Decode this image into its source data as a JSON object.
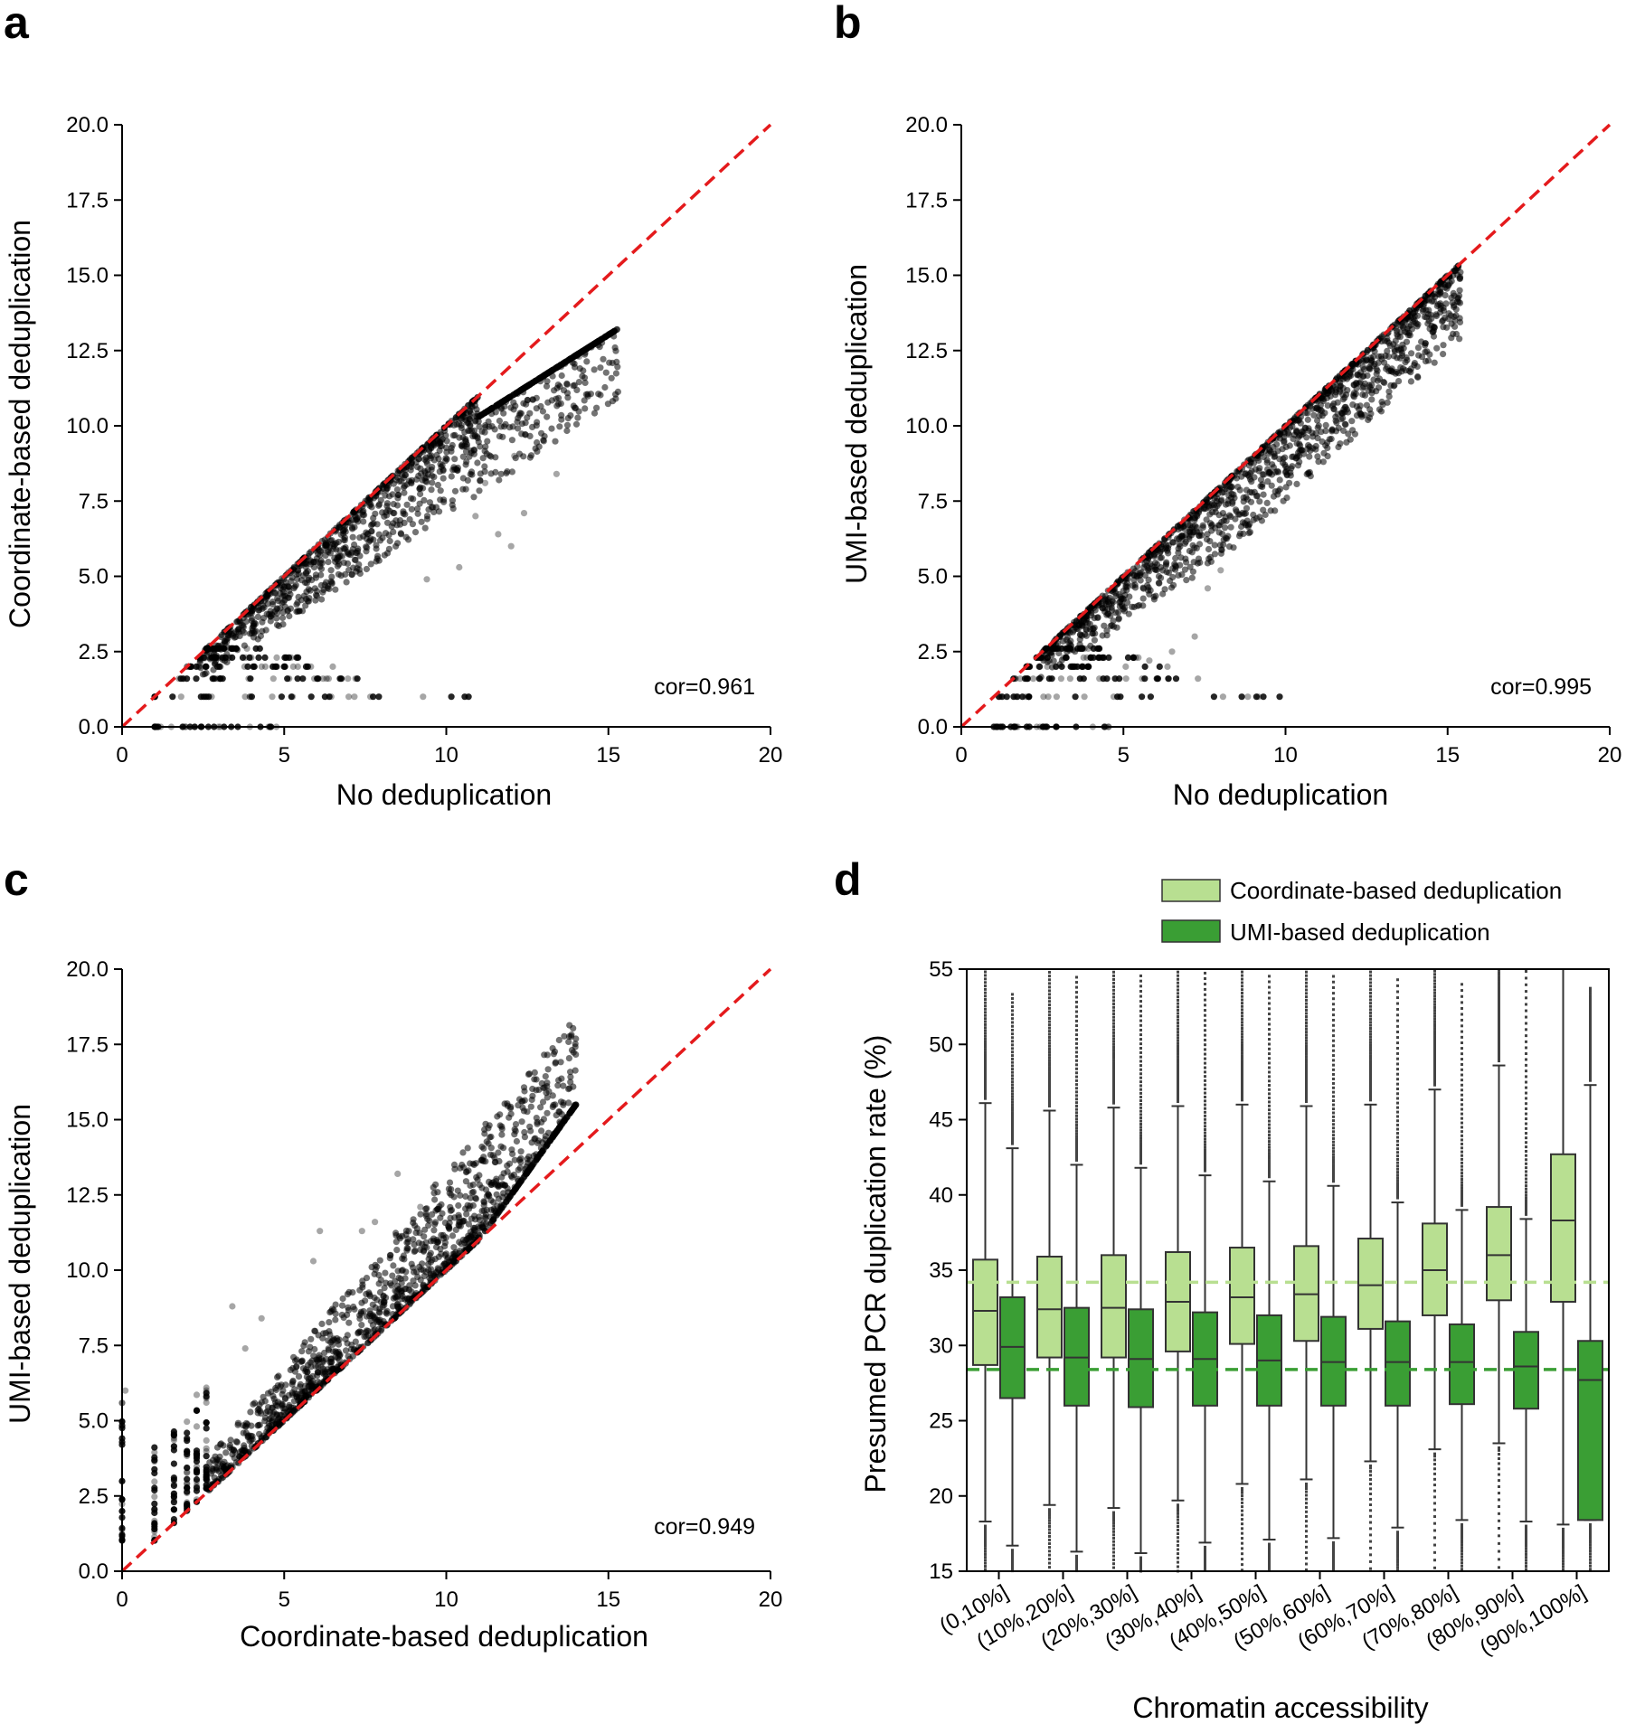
{
  "figure": {
    "panels": [
      {
        "letter": "a"
      },
      {
        "letter": "b"
      },
      {
        "letter": "c"
      },
      {
        "letter": "d"
      }
    ]
  },
  "chart_data": [
    {
      "id": "a",
      "type": "scatter",
      "xlabel": "No deduplication",
      "ylabel": "Coordinate-based deduplication",
      "xlim": [
        0,
        20
      ],
      "ylim": [
        0,
        20
      ],
      "xticks": [
        "0",
        "5",
        "10",
        "15",
        "20"
      ],
      "yticks": [
        "0.0",
        "2.5",
        "5.0",
        "7.5",
        "10.0",
        "12.5",
        "15.0",
        "17.5",
        "20.0"
      ],
      "annotation": "cor=0.961",
      "reference_line": {
        "type": "identity",
        "color": "#e41a1c",
        "style": "dashed"
      },
      "point_color": "#000000",
      "point_cloud": {
        "x_range": [
          0.9,
          15.6
        ],
        "upper_edge": "y=x (up to ~12.5)",
        "tail_end": [
          15.5,
          14.0
        ],
        "discrete_low_levels": [
          0,
          1.0,
          1.6,
          2.0,
          2.3,
          2.6
        ],
        "max_spread_below_identity": 5
      },
      "outliers": [
        [
          12.0,
          6.0
        ],
        [
          10.9,
          7.0
        ],
        [
          13.4,
          8.4
        ],
        [
          12.4,
          7.1
        ],
        [
          11.6,
          6.4
        ],
        [
          14.1,
          12.3
        ],
        [
          12.1,
          9.0
        ],
        [
          10.4,
          5.3
        ],
        [
          9.4,
          4.9
        ],
        [
          11.2,
          8.1
        ]
      ]
    },
    {
      "id": "b",
      "type": "scatter",
      "xlabel": "No deduplication",
      "ylabel": "UMI-based deduplication",
      "xlim": [
        0,
        20
      ],
      "ylim": [
        0,
        20
      ],
      "xticks": [
        "0",
        "5",
        "10",
        "15",
        "20"
      ],
      "yticks": [
        "0.0",
        "2.5",
        "5.0",
        "7.5",
        "10.0",
        "12.5",
        "15.0",
        "17.5",
        "20.0"
      ],
      "annotation": "cor=0.995",
      "reference_line": {
        "type": "identity",
        "color": "#e41a1c",
        "style": "dashed"
      },
      "point_color": "#000000",
      "point_cloud": {
        "x_range": [
          0.9,
          15.7
        ],
        "upper_edge": "y=x",
        "tail_end": [
          15.6,
          15.3
        ],
        "discrete_low_levels": [
          0,
          1.0,
          1.6,
          2.0,
          2.3,
          2.6
        ],
        "max_spread_below_identity": 2.5
      },
      "outliers": [
        [
          7.2,
          3.0
        ],
        [
          6.5,
          2.5
        ],
        [
          5.8,
          2.2
        ],
        [
          7.6,
          4.6
        ],
        [
          4.7,
          1.0
        ],
        [
          8.0,
          5.2
        ]
      ]
    },
    {
      "id": "c",
      "type": "scatter",
      "xlabel": "Coordinate-based deduplication",
      "ylabel": "UMI-based deduplication",
      "xlim": [
        0,
        20
      ],
      "ylim": [
        0,
        20
      ],
      "xticks": [
        "0",
        "5",
        "10",
        "15",
        "20"
      ],
      "yticks": [
        "0.0",
        "2.5",
        "5.0",
        "7.5",
        "10.0",
        "12.5",
        "15.0",
        "17.5",
        "20.0"
      ],
      "annotation": "cor=0.949",
      "reference_line": {
        "type": "identity",
        "color": "#e41a1c",
        "style": "dashed"
      },
      "point_color": "#000000",
      "point_cloud": {
        "x_range": [
          0,
          14.0
        ],
        "lower_edge": "y=x",
        "tail_end": [
          13.8,
          15.4
        ],
        "discrete_low_x_levels": [
          0,
          1.0,
          1.6,
          2.0,
          2.3,
          2.6
        ],
        "max_spread_above_identity": 5
      },
      "outliers": [
        [
          6.1,
          11.3
        ],
        [
          8.5,
          13.2
        ],
        [
          7.4,
          11.3
        ],
        [
          3.4,
          8.8
        ],
        [
          4.3,
          8.4
        ],
        [
          5.9,
          10.3
        ],
        [
          9.2,
          12.1
        ],
        [
          3.8,
          7.4
        ],
        [
          0.1,
          6.0
        ],
        [
          7.8,
          11.6
        ]
      ]
    },
    {
      "id": "d",
      "type": "box",
      "xlabel": "Chromatin accessibility",
      "ylabel": "Presumed PCR duplication rate (%)",
      "ylim": [
        15,
        55
      ],
      "yticks": [
        "15",
        "20",
        "25",
        "30",
        "35",
        "40",
        "45",
        "50",
        "55"
      ],
      "categories": [
        "(0,10%]",
        "(10%,20%]",
        "(20%,30%]",
        "(30%,40%]",
        "(40%,50%]",
        "(50%,60%]",
        "(60%,70%]",
        "(70%,80%]",
        "(80%,90%]",
        "(90%,100%]"
      ],
      "legend": [
        {
          "label": "Coordinate-based deduplication",
          "color": "#b8df91"
        },
        {
          "label": "UMI-based deduplication",
          "color": "#3a9e34"
        }
      ],
      "hlines": [
        {
          "series": "Coordinate-based deduplication",
          "y": 34.2,
          "color": "#b8df91",
          "style": "dashed"
        },
        {
          "series": "UMI-based deduplication",
          "y": 28.4,
          "color": "#3a9e34",
          "style": "dashed"
        }
      ],
      "series": [
        {
          "name": "Coordinate-based deduplication",
          "color": "#b8df91",
          "boxes": [
            {
              "q1": 28.7,
              "median": 32.3,
              "q3": 35.7,
              "whisker_low": 18.3,
              "whisker_high": 46.1,
              "outlier_max": 55
            },
            {
              "q1": 29.2,
              "median": 32.4,
              "q3": 35.9,
              "whisker_low": 19.4,
              "whisker_high": 45.6,
              "outlier_max": 55
            },
            {
              "q1": 29.2,
              "median": 32.5,
              "q3": 36.0,
              "whisker_low": 19.2,
              "whisker_high": 45.8,
              "outlier_max": 55
            },
            {
              "q1": 29.6,
              "median": 32.9,
              "q3": 36.2,
              "whisker_low": 19.7,
              "whisker_high": 45.9,
              "outlier_max": 55
            },
            {
              "q1": 30.1,
              "median": 33.2,
              "q3": 36.5,
              "whisker_low": 20.8,
              "whisker_high": 46.0,
              "outlier_max": 55
            },
            {
              "q1": 30.3,
              "median": 33.4,
              "q3": 36.6,
              "whisker_low": 21.1,
              "whisker_high": 45.9,
              "outlier_max": 55
            },
            {
              "q1": 31.1,
              "median": 34.0,
              "q3": 37.1,
              "whisker_low": 22.3,
              "whisker_high": 46.0,
              "outlier_max": 55
            },
            {
              "q1": 32.0,
              "median": 35.0,
              "q3": 38.1,
              "whisker_low": 23.1,
              "whisker_high": 47.0,
              "outlier_max": 55
            },
            {
              "q1": 33.0,
              "median": 36.0,
              "q3": 39.2,
              "whisker_low": 23.5,
              "whisker_high": 48.6,
              "outlier_max": 55
            },
            {
              "q1": 32.9,
              "median": 38.3,
              "q3": 42.7,
              "whisker_low": 18.1,
              "whisker_high": 55,
              "outlier_max": 55
            }
          ]
        },
        {
          "name": "UMI-based deduplication",
          "color": "#3a9e34",
          "boxes": [
            {
              "q1": 26.5,
              "median": 29.9,
              "q3": 33.2,
              "whisker_low": 16.7,
              "whisker_high": 43.1,
              "outlier_max": 53.3
            },
            {
              "q1": 26.0,
              "median": 29.2,
              "q3": 32.5,
              "whisker_low": 16.3,
              "whisker_high": 42.0,
              "outlier_max": 54.5
            },
            {
              "q1": 25.9,
              "median": 29.1,
              "q3": 32.4,
              "whisker_low": 16.2,
              "whisker_high": 41.8,
              "outlier_max": 54.6
            },
            {
              "q1": 26.0,
              "median": 29.1,
              "q3": 32.2,
              "whisker_low": 16.9,
              "whisker_high": 41.3,
              "outlier_max": 54.8
            },
            {
              "q1": 26.0,
              "median": 29.0,
              "q3": 32.0,
              "whisker_low": 17.1,
              "whisker_high": 40.9,
              "outlier_max": 54.6
            },
            {
              "q1": 26.0,
              "median": 28.9,
              "q3": 31.9,
              "whisker_low": 17.2,
              "whisker_high": 40.6,
              "outlier_max": 54.6
            },
            {
              "q1": 26.0,
              "median": 28.9,
              "q3": 31.6,
              "whisker_low": 17.9,
              "whisker_high": 39.5,
              "outlier_max": 54.4
            },
            {
              "q1": 26.1,
              "median": 28.9,
              "q3": 31.4,
              "whisker_low": 18.4,
              "whisker_high": 39.0,
              "outlier_max": 54.1
            },
            {
              "q1": 25.8,
              "median": 28.6,
              "q3": 30.9,
              "whisker_low": 18.3,
              "whisker_high": 38.4,
              "outlier_max": 55
            },
            {
              "q1": 18.4,
              "median": 27.7,
              "q3": 30.3,
              "whisker_low": 18.4,
              "whisker_high": 47.3,
              "outlier_max": 53.6
            }
          ]
        }
      ]
    }
  ]
}
